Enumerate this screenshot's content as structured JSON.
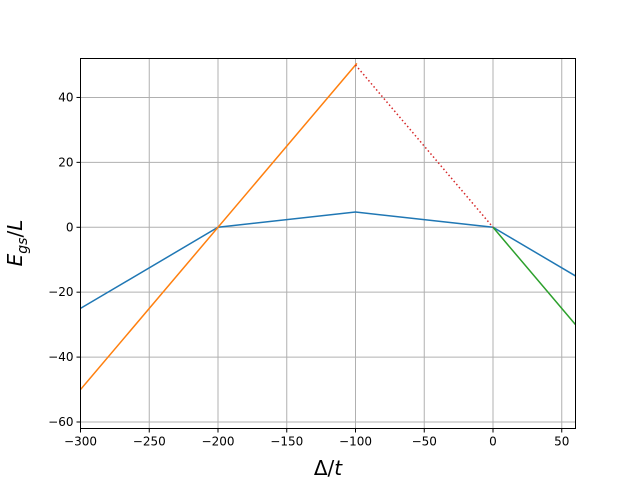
{
  "chart_data": {
    "type": "line",
    "title": "",
    "xlabel": "Δ/t",
    "ylabel": "E_gs/L",
    "xlim": [
      -300,
      60
    ],
    "ylim": [
      -62,
      52
    ],
    "xticks": [
      -300,
      -250,
      -200,
      -150,
      -100,
      -50,
      0,
      50
    ],
    "yticks": [
      -60,
      -40,
      -20,
      0,
      20,
      40
    ],
    "xtick_labels": [
      "−300",
      "−250",
      "−200",
      "−150",
      "−100",
      "−50",
      "0",
      "50"
    ],
    "ytick_labels": [
      "−60",
      "−40",
      "−20",
      "0",
      "20",
      "40"
    ],
    "grid": true,
    "series": [
      {
        "color": "#1f77b4",
        "style": "solid",
        "x": [
          -300,
          -200,
          -100,
          0,
          60
        ],
        "y": [
          -25,
          0,
          4.7,
          0,
          -15
        ]
      },
      {
        "color": "#ff7f0e",
        "style": "solid",
        "x": [
          -300,
          -99
        ],
        "y": [
          -50,
          50.5
        ]
      },
      {
        "color": "#2ca02c",
        "style": "solid",
        "x": [
          0,
          60
        ],
        "y": [
          0,
          -30
        ]
      },
      {
        "color": "#d62728",
        "style": "dotted",
        "x": [
          -100,
          0
        ],
        "y": [
          50,
          0
        ]
      }
    ]
  }
}
